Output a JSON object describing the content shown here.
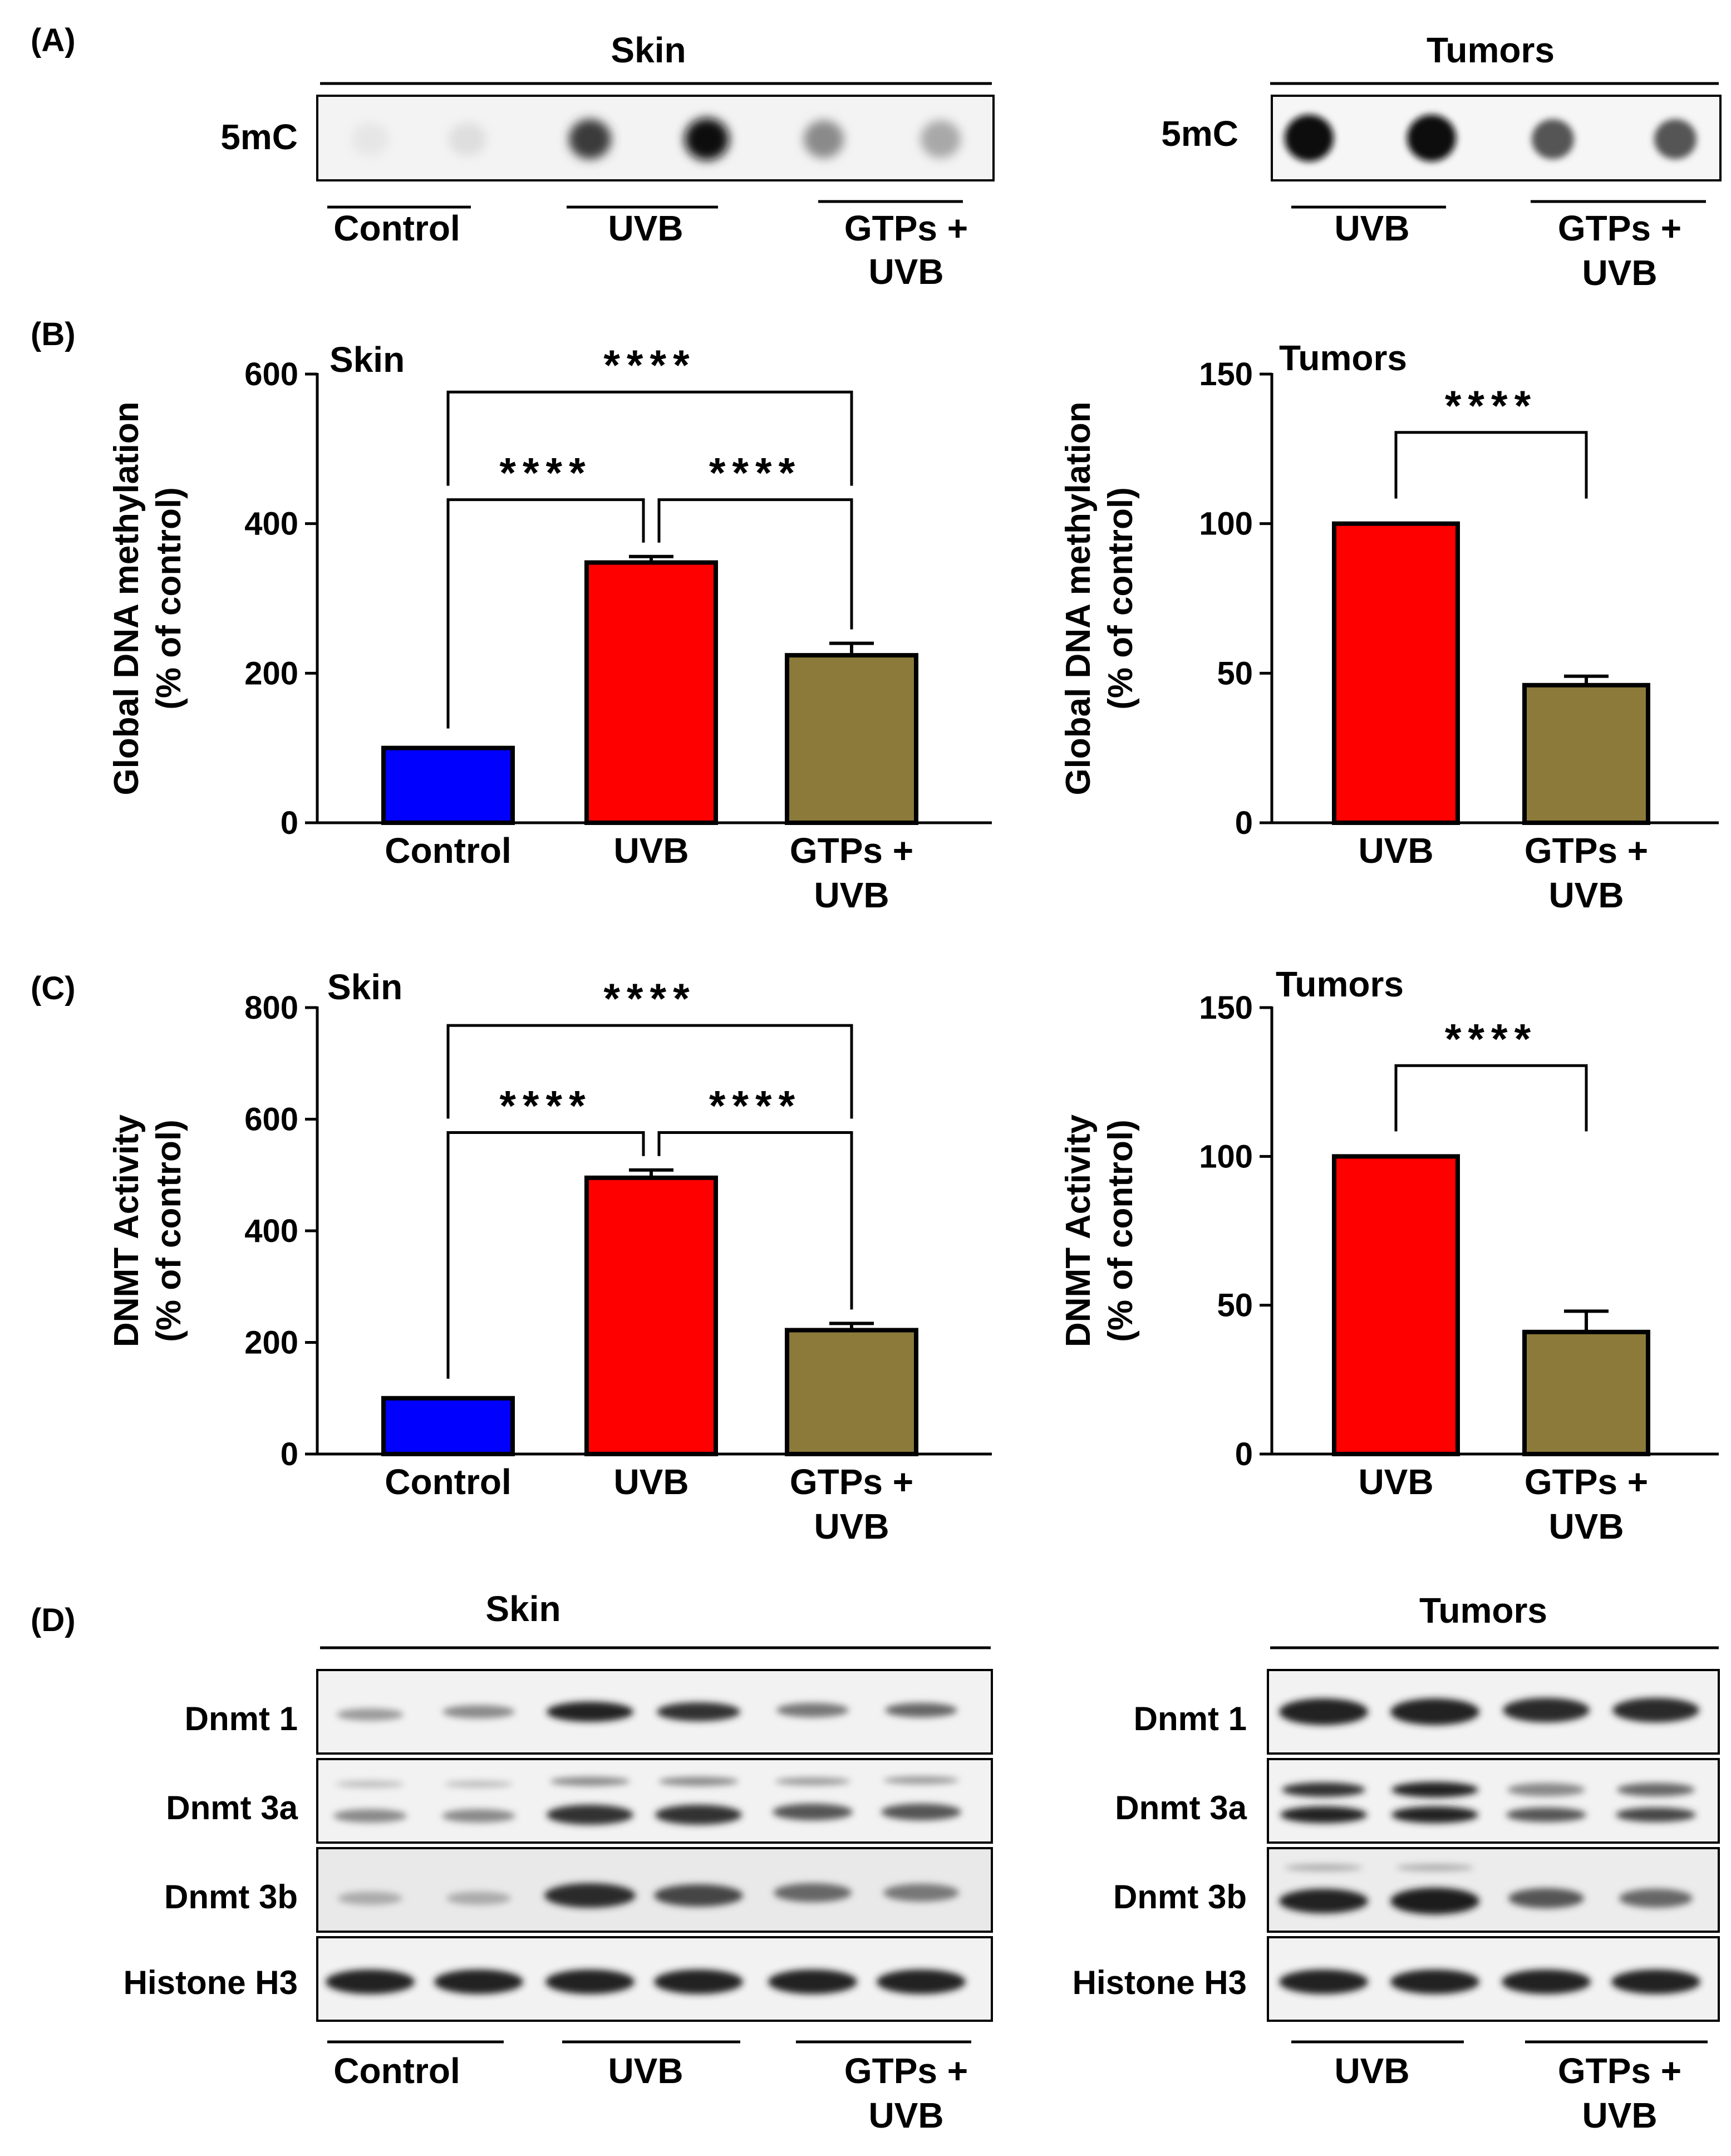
{
  "panel_labels": [
    "(A)",
    "(B)",
    "(C)",
    "(D)"
  ],
  "panel_a": {
    "skin": {
      "title": "Skin",
      "row_label": "5mC",
      "groups": [
        "Control",
        "UVB",
        "GTPs +",
        "UVB"
      ]
    },
    "tumors": {
      "title": "Tumors",
      "row_label": "5mC",
      "groups": [
        "UVB",
        "GTPs +",
        "UVB"
      ]
    }
  },
  "panel_d": {
    "skin": {
      "title": "Skin",
      "rows": [
        "Dnmt 1",
        "Dnmt 3a",
        "Dnmt 3b",
        "Histone H3"
      ],
      "groups": [
        "Control",
        "UVB",
        "GTPs +",
        "UVB"
      ]
    },
    "tumors": {
      "title": "Tumors",
      "rows": [
        "Dnmt 1",
        "Dnmt 3a",
        "Dnmt 3b",
        "Histone H3"
      ],
      "groups": [
        "UVB",
        "GTPs +",
        "UVB"
      ]
    }
  },
  "significance": "****",
  "colors": {
    "control": "#0000ff",
    "uvb": "#ff0000",
    "gtps": "#8b7a3a",
    "axis": "#000000"
  },
  "chart_data": [
    {
      "type": "bar",
      "id": "b-skin",
      "title": "Skin",
      "categories": [
        "Control",
        "UVB",
        "GTPs + UVB"
      ],
      "values": [
        100,
        348,
        224
      ],
      "errors": [
        0,
        8,
        16
      ],
      "ylabel": "Global DNA methylation",
      "ylabel2": "(% of control)",
      "ylim": [
        0,
        600
      ],
      "yticks": [
        0,
        200,
        400,
        600
      ],
      "significance": [
        "Control vs UVB: ****",
        "UVB vs GTPs + UVB: ****",
        "Control vs GTPs + UVB: ****"
      ]
    },
    {
      "type": "bar",
      "id": "b-tumors",
      "title": "Tumors",
      "categories": [
        "UVB",
        "GTPs + UVB"
      ],
      "values": [
        100,
        46
      ],
      "errors": [
        0,
        3
      ],
      "ylabel": "Global DNA methylation",
      "ylabel2": "(% of control)",
      "ylim": [
        0,
        150
      ],
      "yticks": [
        0,
        50,
        100,
        150
      ],
      "significance": [
        "UVB vs GTPs + UVB: ****"
      ]
    },
    {
      "type": "bar",
      "id": "c-skin",
      "title": "Skin",
      "categories": [
        "Control",
        "UVB",
        "GTPs + UVB"
      ],
      "values": [
        100,
        495,
        222
      ],
      "errors": [
        0,
        14,
        12
      ],
      "ylabel": "DNMT Activity",
      "ylabel2": "(% of control)",
      "ylim": [
        0,
        800
      ],
      "yticks": [
        0,
        200,
        400,
        600,
        800
      ],
      "significance": [
        "Control vs UVB: ****",
        "UVB vs GTPs + UVB: ****",
        "Control vs GTPs + UVB: ****"
      ]
    },
    {
      "type": "bar",
      "id": "c-tumors",
      "title": "Tumors",
      "categories": [
        "UVB",
        "GTPs + UVB"
      ],
      "values": [
        100,
        41
      ],
      "errors": [
        0,
        7
      ],
      "ylabel": "DNMT Activity",
      "ylabel2": "(% of control)",
      "ylim": [
        0,
        150
      ],
      "yticks": [
        0,
        50,
        100,
        150
      ],
      "significance": [
        "UVB vs GTPs + UVB: ****"
      ]
    }
  ]
}
